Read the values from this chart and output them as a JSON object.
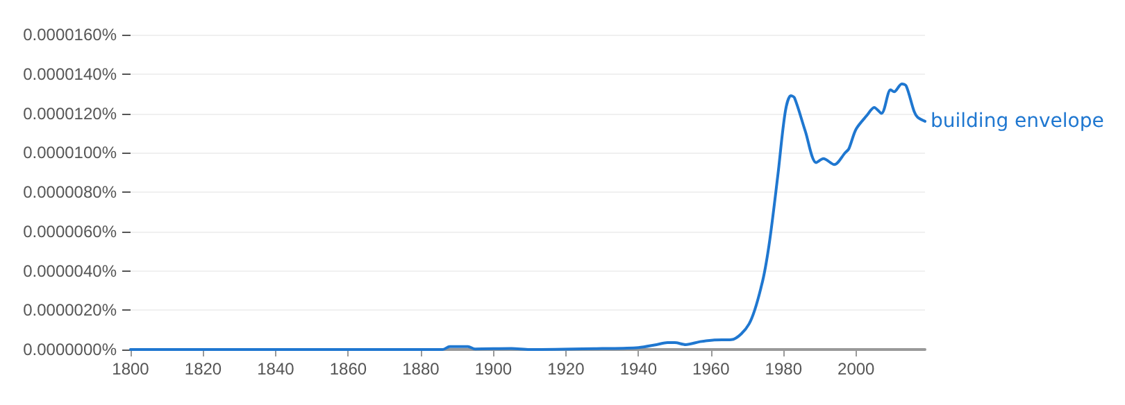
{
  "chart_data": {
    "type": "line",
    "grid": "y",
    "legend": false,
    "marker": "none",
    "line_style": "solid",
    "xlim": [
      1800,
      2019
    ],
    "xticks": [
      1800,
      1820,
      1840,
      1860,
      1880,
      1900,
      1920,
      1940,
      1960,
      1980,
      2000
    ],
    "ylim": [
      0,
      1.6e-05
    ],
    "yticks": [
      {
        "value": 0,
        "label": "0.0000000%"
      },
      {
        "value": 2e-06,
        "label": "0.0000020%"
      },
      {
        "value": 4e-06,
        "label": "0.0000040%"
      },
      {
        "value": 6e-06,
        "label": "0.0000060%"
      },
      {
        "value": 8e-06,
        "label": "0.0000080%"
      },
      {
        "value": 1e-05,
        "label": "0.0000100%"
      },
      {
        "value": 1.2e-05,
        "label": "0.0000120%"
      },
      {
        "value": 1.4e-05,
        "label": "0.0000140%"
      },
      {
        "value": 1.6e-05,
        "label": "0.0000160%"
      }
    ],
    "series": [
      {
        "name": "building envelope",
        "color": "#1f77d0",
        "x": [
          1800,
          1886,
          1888,
          1893,
          1895,
          1905,
          1910,
          1930,
          1940,
          1945,
          1948,
          1950,
          1953,
          1957,
          1960.5,
          1965.6,
          1970.5,
          1974,
          1976,
          1978.4,
          1980.5,
          1982,
          1983,
          1986,
          1989,
          1991,
          1994,
          1997,
          1998,
          2000,
          2003,
          2005,
          2007,
          2009.5,
          2010.5,
          2012.6,
          2013.8,
          2016,
          2017,
          2019
        ],
        "values": [
          0,
          0,
          1.5e-07,
          1.5e-07,
          3e-08,
          5e-08,
          0,
          5e-08,
          1e-07,
          2.5e-07,
          3.5e-07,
          3.5e-07,
          2.5e-07,
          4e-07,
          4.8e-07,
          5e-07,
          1.3e-06,
          3.3e-06,
          5.3e-06,
          8.8e-06,
          1.21e-05,
          1.29e-05,
          1.28e-05,
          1.11e-05,
          9.5e-06,
          9.7e-06,
          9.4e-06,
          1e-05,
          1.02e-05,
          1.12e-05,
          1.19e-05,
          1.23e-05,
          1.2e-05,
          1.32e-05,
          1.31e-05,
          1.35e-05,
          1.34e-05,
          1.21e-05,
          1.18e-05,
          1.16e-05
        ]
      }
    ]
  }
}
